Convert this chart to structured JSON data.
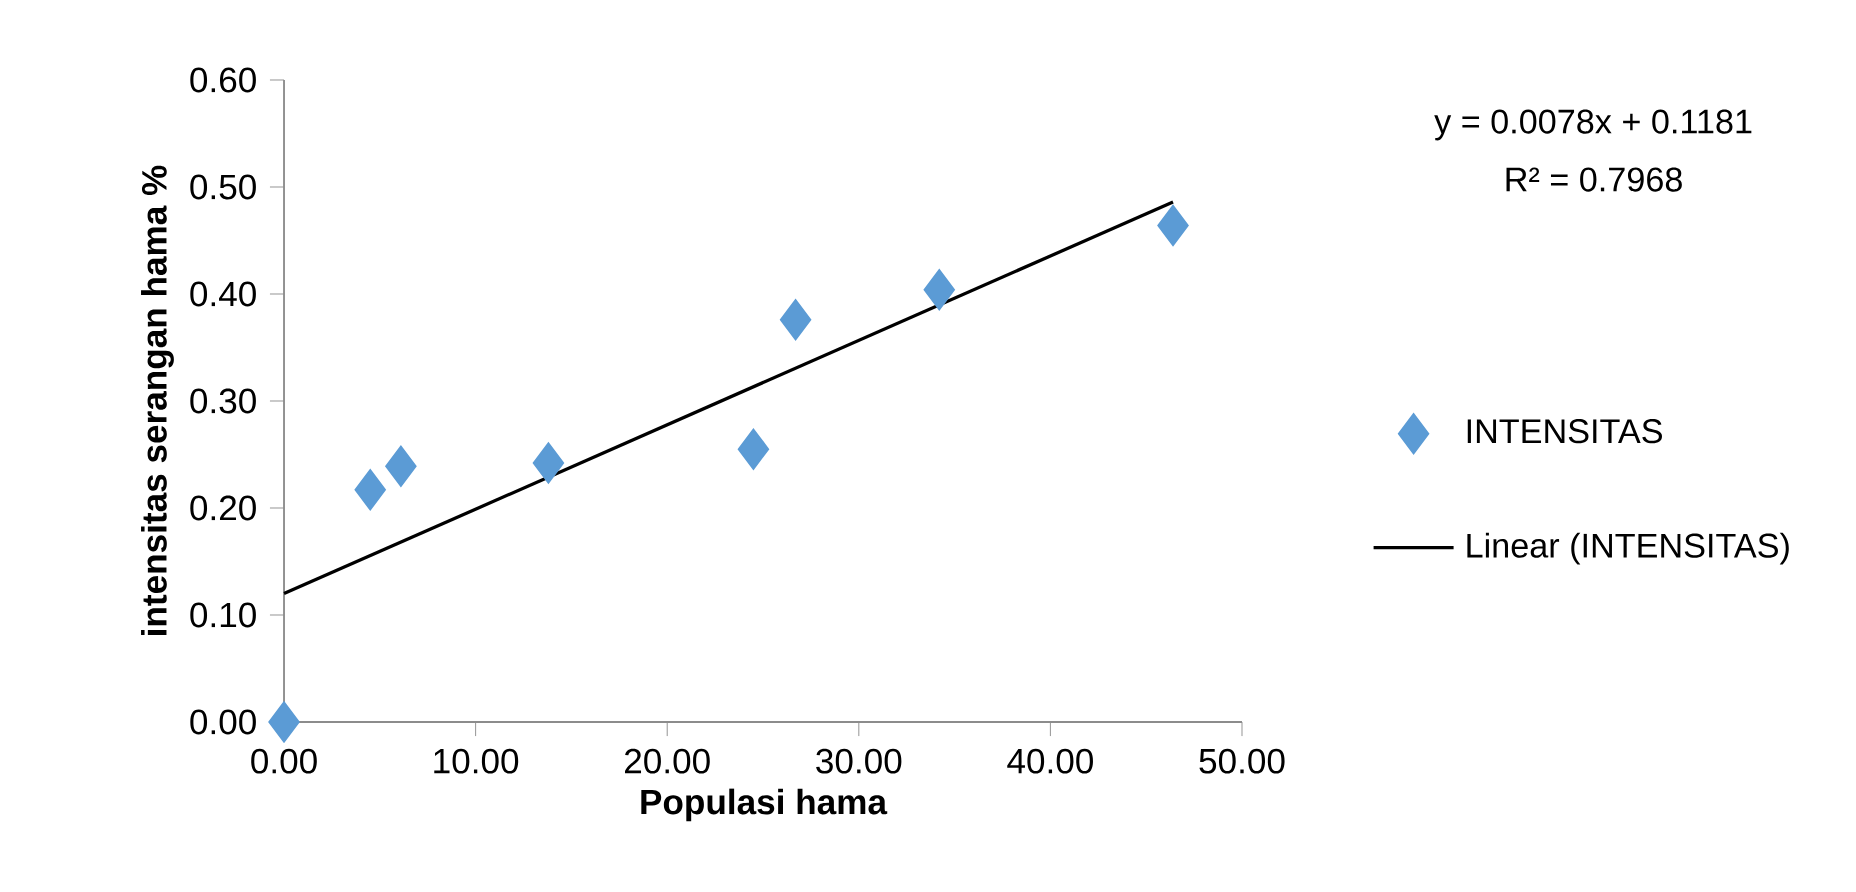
{
  "chart_data": {
    "type": "scatter",
    "xlabel": "Populasi hama",
    "ylabel": "intensitas serangan hama %",
    "xlim": [
      0,
      50
    ],
    "xticks": [
      {
        "value": 0,
        "label": "0.00"
      },
      {
        "value": 10,
        "label": "10.00"
      },
      {
        "value": 20,
        "label": "20.00"
      },
      {
        "value": 30,
        "label": "30.00"
      },
      {
        "value": 40,
        "label": "40.00"
      },
      {
        "value": 50,
        "label": "50.00"
      }
    ],
    "ylim": [
      0,
      0.6
    ],
    "yticks": [
      {
        "value": 0,
        "label": "0.00"
      },
      {
        "value": 0.1,
        "label": "0.10"
      },
      {
        "value": 0.2,
        "label": "0.20"
      },
      {
        "value": 0.3,
        "label": "0.30"
      },
      {
        "value": 0.4,
        "label": "0.40"
      },
      {
        "value": 0.5,
        "label": "0.50"
      },
      {
        "value": 0.6,
        "label": "0.60"
      }
    ],
    "grid": false,
    "legend": "right",
    "annotations": [
      "y = 0.0078x + 0.1181",
      "R² = 0.7968"
    ],
    "series": [
      {
        "name": "INTENSITAS",
        "marker": "diamond",
        "color": "#5b9bd5",
        "x": [
          0,
          4.5,
          6.1,
          13.8,
          24.5,
          26.7,
          34.2,
          46.4
        ],
        "values": [
          0,
          0.217,
          0.239,
          0.242,
          0.255,
          0.376,
          0.404,
          0.464
        ]
      },
      {
        "name": "Linear (INTENSITAS)",
        "type": "line",
        "marker": "none",
        "line_style": "solid",
        "color": "#000000",
        "x": [
          0,
          46.4
        ],
        "values": [
          0.12,
          0.486
        ]
      }
    ]
  }
}
